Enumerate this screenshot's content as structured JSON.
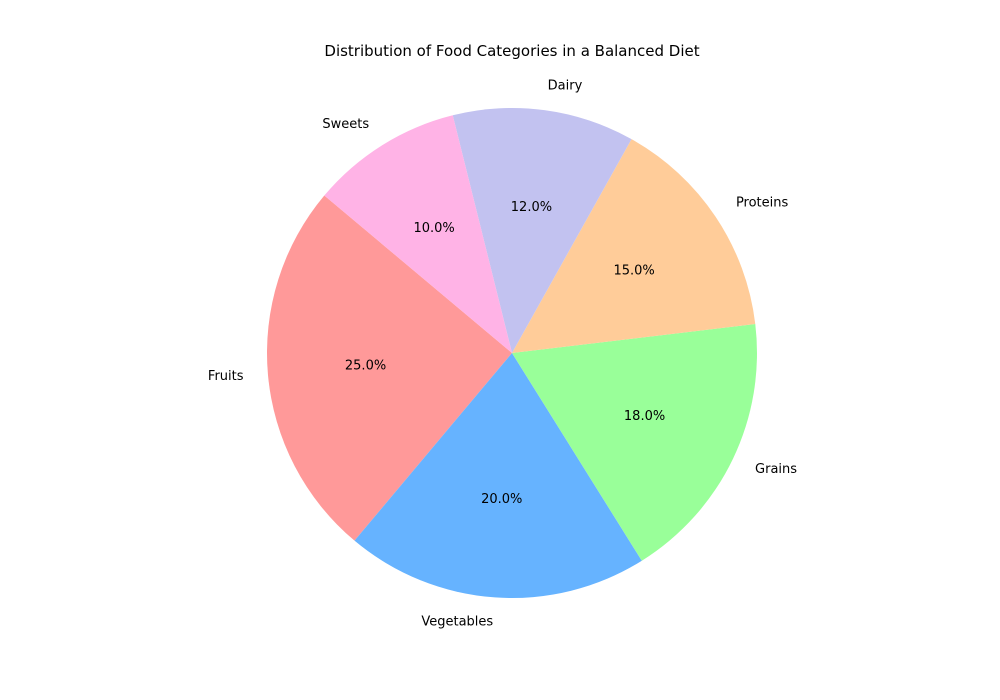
{
  "chart_data": {
    "type": "pie",
    "title": "Distribution of Food Categories in a Balanced Diet",
    "categories": [
      "Fruits",
      "Vegetables",
      "Grains",
      "Proteins",
      "Dairy",
      "Sweets"
    ],
    "values": [
      25,
      20,
      18,
      15,
      12,
      10
    ],
    "percent_labels": [
      "25.0%",
      "20.0%",
      "18.0%",
      "15.0%",
      "12.0%",
      "10.0%"
    ],
    "colors": [
      "#ff9999",
      "#66b3ff",
      "#99ff99",
      "#ffcc99",
      "#c2c2f0",
      "#ffb3e6"
    ],
    "start_angle_deg": 140,
    "direction": "counterclockwise",
    "legend": "none"
  }
}
